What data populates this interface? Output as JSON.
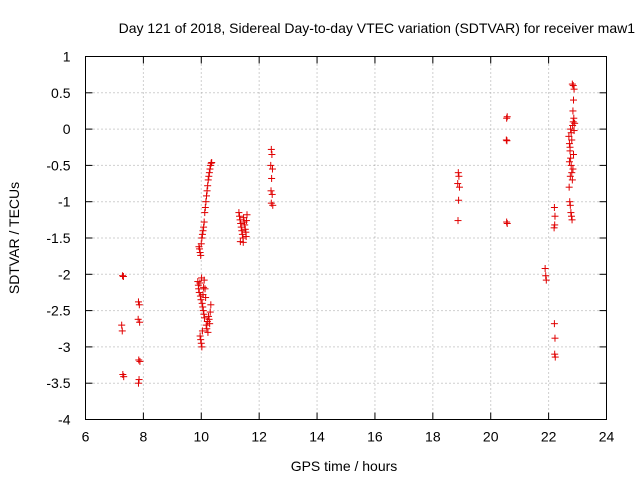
{
  "chart_data": {
    "type": "scatter",
    "title": "Day 121 of 2018, Sidereal Day-to-day VTEC variation (SDTVAR) for receiver maw1",
    "xlabel": "GPS time / hours",
    "ylabel": "SDTVAR / TECUs",
    "xlim": [
      6,
      24
    ],
    "ylim": [
      -4,
      1
    ],
    "xticks": [
      6,
      8,
      10,
      12,
      14,
      16,
      18,
      20,
      22,
      24
    ],
    "yticks": [
      -4,
      -3.5,
      -3,
      -2.5,
      -2,
      -1.5,
      -1,
      -0.5,
      0,
      0.5,
      1
    ],
    "xtick_labels": [
      "6",
      "8",
      "10",
      "12",
      "14",
      "16",
      "18",
      "20",
      "22",
      "24"
    ],
    "ytick_labels": [
      "-4",
      "-3.5",
      "-3",
      "-2.5",
      "-2",
      "-1.5",
      "-1",
      "-0.5",
      "0",
      "0.5",
      "1"
    ],
    "grid": true,
    "marker": "+",
    "marker_color": "#e00000",
    "series": [
      {
        "name": "SDTVAR",
        "points": [
          [
            7.28,
            -2.02
          ],
          [
            7.31,
            -2.03
          ],
          [
            7.25,
            -2.7
          ],
          [
            7.27,
            -2.78
          ],
          [
            7.29,
            -3.38
          ],
          [
            7.32,
            -3.41
          ],
          [
            7.83,
            -2.38
          ],
          [
            7.86,
            -2.42
          ],
          [
            7.82,
            -2.62
          ],
          [
            7.87,
            -2.66
          ],
          [
            7.84,
            -3.18
          ],
          [
            7.88,
            -3.2
          ],
          [
            7.85,
            -3.45
          ],
          [
            7.83,
            -3.5
          ],
          [
            9.92,
            -1.62
          ],
          [
            9.94,
            -1.65
          ],
          [
            9.96,
            -1.7
          ],
          [
            9.98,
            -1.74
          ],
          [
            10.0,
            -1.58
          ],
          [
            10.02,
            -1.5
          ],
          [
            10.04,
            -1.45
          ],
          [
            10.06,
            -1.4
          ],
          [
            10.08,
            -1.35
          ],
          [
            10.1,
            -1.28
          ],
          [
            10.12,
            -1.15
          ],
          [
            10.14,
            -1.08
          ],
          [
            10.16,
            -1.0
          ],
          [
            10.18,
            -0.92
          ],
          [
            10.2,
            -0.85
          ],
          [
            10.22,
            -0.78
          ],
          [
            10.24,
            -0.7
          ],
          [
            10.26,
            -0.65
          ],
          [
            10.28,
            -0.6
          ],
          [
            10.3,
            -0.55
          ],
          [
            10.32,
            -0.5
          ],
          [
            10.34,
            -0.47
          ],
          [
            10.36,
            -0.46
          ],
          [
            9.88,
            -2.1
          ],
          [
            9.9,
            -2.15
          ],
          [
            9.91,
            -2.2
          ],
          [
            9.93,
            -2.25
          ],
          [
            9.95,
            -2.12
          ],
          [
            9.97,
            -2.3
          ],
          [
            9.99,
            -2.35
          ],
          [
            10.01,
            -2.05
          ],
          [
            10.03,
            -2.4
          ],
          [
            10.05,
            -2.45
          ],
          [
            10.07,
            -2.5
          ],
          [
            10.09,
            -2.55
          ],
          [
            10.11,
            -2.6
          ],
          [
            10.13,
            -2.2
          ],
          [
            10.15,
            -2.32
          ],
          [
            10.17,
            -2.7
          ],
          [
            10.19,
            -2.75
          ],
          [
            10.21,
            -2.65
          ],
          [
            10.23,
            -2.8
          ],
          [
            10.25,
            -2.58
          ],
          [
            10.27,
            -2.62
          ],
          [
            10.29,
            -2.68
          ],
          [
            10.31,
            -2.52
          ],
          [
            10.33,
            -2.42
          ],
          [
            9.98,
            -2.9
          ],
          [
            10.0,
            -2.95
          ],
          [
            10.02,
            -3.0
          ],
          [
            9.96,
            -2.85
          ],
          [
            10.04,
            -2.78
          ],
          [
            10.06,
            -2.28
          ],
          [
            10.08,
            -2.18
          ],
          [
            10.1,
            -2.08
          ],
          [
            11.3,
            -1.15
          ],
          [
            11.32,
            -1.2
          ],
          [
            11.34,
            -1.25
          ],
          [
            11.36,
            -1.3
          ],
          [
            11.38,
            -1.35
          ],
          [
            11.4,
            -1.4
          ],
          [
            11.42,
            -1.45
          ],
          [
            11.44,
            -1.5
          ],
          [
            11.46,
            -1.22
          ],
          [
            11.48,
            -1.28
          ],
          [
            11.5,
            -1.32
          ],
          [
            11.52,
            -1.38
          ],
          [
            11.54,
            -1.42
          ],
          [
            11.56,
            -1.26
          ],
          [
            11.58,
            -1.18
          ],
          [
            11.35,
            -1.55
          ],
          [
            11.45,
            -1.56
          ],
          [
            11.55,
            -1.48
          ],
          [
            12.42,
            -0.28
          ],
          [
            12.44,
            -0.35
          ],
          [
            12.4,
            -0.5
          ],
          [
            12.46,
            -0.55
          ],
          [
            12.43,
            -0.68
          ],
          [
            12.41,
            -0.85
          ],
          [
            12.45,
            -0.9
          ],
          [
            12.42,
            -1.02
          ],
          [
            12.47,
            -1.05
          ],
          [
            18.88,
            -0.6
          ],
          [
            18.9,
            -0.65
          ],
          [
            18.86,
            -0.75
          ],
          [
            18.92,
            -0.8
          ],
          [
            18.89,
            -0.98
          ],
          [
            18.87,
            -1.26
          ],
          [
            20.55,
            0.15
          ],
          [
            20.57,
            0.17
          ],
          [
            20.54,
            -0.15
          ],
          [
            20.56,
            -0.16
          ],
          [
            20.55,
            -1.28
          ],
          [
            20.57,
            -1.3
          ],
          [
            21.88,
            -1.92
          ],
          [
            21.9,
            -2.02
          ],
          [
            21.92,
            -2.08
          ],
          [
            22.2,
            -1.08
          ],
          [
            22.22,
            -1.2
          ],
          [
            22.21,
            -1.32
          ],
          [
            22.19,
            -1.36
          ],
          [
            22.2,
            -2.68
          ],
          [
            22.22,
            -2.88
          ],
          [
            22.21,
            -3.1
          ],
          [
            22.23,
            -3.14
          ],
          [
            22.7,
            -0.1
          ],
          [
            22.72,
            -0.2
          ],
          [
            22.74,
            -0.3
          ],
          [
            22.76,
            -0.4
          ],
          [
            22.78,
            -0.5
          ],
          [
            22.8,
            -0.6
          ],
          [
            22.82,
            -0.7
          ],
          [
            22.71,
            -0.8
          ],
          [
            22.73,
            -1.0
          ],
          [
            22.75,
            -1.05
          ],
          [
            22.77,
            -1.15
          ],
          [
            22.79,
            -1.2
          ],
          [
            22.81,
            -1.25
          ],
          [
            22.83,
            0.05
          ],
          [
            22.85,
            0.1
          ],
          [
            22.87,
            0.15
          ],
          [
            22.84,
            0.25
          ],
          [
            22.86,
            0.4
          ],
          [
            22.88,
            0.55
          ],
          [
            22.85,
            0.6
          ],
          [
            22.82,
            0.62
          ],
          [
            22.76,
            0.0
          ],
          [
            22.78,
            -0.05
          ],
          [
            22.8,
            -0.15
          ],
          [
            22.74,
            -0.25
          ],
          [
            22.9,
            0.08
          ],
          [
            22.88,
            -0.02
          ],
          [
            22.72,
            -0.45
          ],
          [
            22.86,
            -0.35
          ],
          [
            22.84,
            -0.55
          ],
          [
            22.75,
            -0.65
          ]
        ]
      }
    ]
  }
}
